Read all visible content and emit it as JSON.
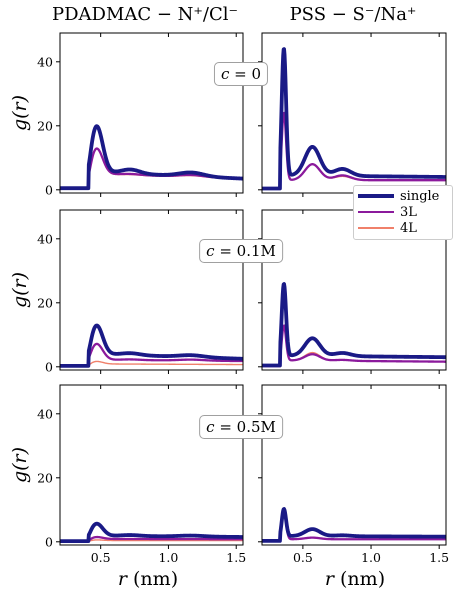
{
  "titles": [
    "PDADMAC − N⁺/Cl⁻",
    "PSS − S⁻/Na⁺"
  ],
  "ylabel": "g(r)",
  "xlabel_var": "r",
  "xlabel_unit": "(nm)",
  "row_labels": [
    {
      "var": "c",
      "value": "= 0"
    },
    {
      "var": "c",
      "value": "= 0.1M"
    },
    {
      "var": "c",
      "value": "= 0.5M"
    }
  ],
  "legend": [
    {
      "name": "single",
      "color": "#1a1a86"
    },
    {
      "name": "3L",
      "color": "#8b1a9c"
    },
    {
      "name": "4L",
      "color": "#f0806a"
    }
  ],
  "chart_data": {
    "type": "line",
    "xlim": [
      0.2,
      1.55
    ],
    "ylim": [
      -1,
      49
    ],
    "xticks": [
      0.5,
      1.0,
      1.5
    ],
    "yticks": [
      0,
      20,
      40
    ],
    "panels": [
      {
        "row": 0,
        "col": 0,
        "peaks": [
          [
            0.47,
            0.045
          ],
          [
            0.72,
            0.07
          ],
          [
            1.17,
            0.09
          ]
        ],
        "series": [
          {
            "name": "single",
            "onset": 0.41,
            "base": 0.5,
            "amps": [
              14.5,
              1.3,
              1.2
            ],
            "tail": 5.5,
            "tail_end": 3.5
          },
          {
            "name": "3L",
            "onset": 0.41,
            "base": 0.3,
            "amps": [
              8.0,
              0.3,
              0.6
            ],
            "tail": 5.0,
            "tail_end": 3.5
          },
          {
            "name": "4L",
            "onset": 0.41,
            "base": 0.3,
            "amps": [
              8.0,
              0.2,
              0.5
            ],
            "tail": 4.9,
            "tail_end": 3.4
          }
        ]
      },
      {
        "row": 0,
        "col": 1,
        "peaks": [
          [
            0.36,
            0.016
          ],
          [
            0.57,
            0.055
          ],
          [
            0.79,
            0.06
          ]
        ],
        "series": [
          {
            "name": "single",
            "onset": 0.335,
            "base": 0.4,
            "amps": [
              41.0,
              9.0,
              2.2
            ],
            "tail": 4.5,
            "tail_end": 4.0
          },
          {
            "name": "3L",
            "onset": 0.335,
            "base": 0.3,
            "amps": [
              22.0,
              5.0,
              1.5
            ],
            "tail": 3.0,
            "tail_end": 3.0
          },
          {
            "name": "4L",
            "onset": 0.335,
            "base": 0.3,
            "amps": [
              22.0,
              5.0,
              1.2
            ],
            "tail": 3.0,
            "tail_end": 3.0
          }
        ]
      },
      {
        "row": 1,
        "col": 0,
        "peaks": [
          [
            0.47,
            0.045
          ],
          [
            0.72,
            0.07
          ],
          [
            1.17,
            0.09
          ]
        ],
        "series": [
          {
            "name": "single",
            "onset": 0.41,
            "base": 0.3,
            "amps": [
              9.0,
              0.6,
              0.6
            ],
            "tail": 4.0,
            "tail_end": 2.5
          },
          {
            "name": "3L",
            "onset": 0.41,
            "base": 0.2,
            "amps": [
              5.0,
              0.2,
              0.3
            ],
            "tail": 2.2,
            "tail_end": 1.8
          },
          {
            "name": "4L",
            "onset": 0.41,
            "base": 0.1,
            "amps": [
              0.8,
              0.0,
              0.0
            ],
            "tail": 0.9,
            "tail_end": 0.7
          }
        ]
      },
      {
        "row": 1,
        "col": 1,
        "peaks": [
          [
            0.36,
            0.016
          ],
          [
            0.57,
            0.055
          ],
          [
            0.79,
            0.06
          ]
        ],
        "series": [
          {
            "name": "single",
            "onset": 0.335,
            "base": 0.4,
            "amps": [
              23.5,
              5.5,
              1.0
            ],
            "tail": 3.5,
            "tail_end": 3.0
          },
          {
            "name": "3L",
            "onset": 0.335,
            "base": 0.2,
            "amps": [
              11.5,
              2.0,
              0.3
            ],
            "tail": 2.0,
            "tail_end": 1.6
          },
          {
            "name": "4L",
            "onset": 0.335,
            "base": 0.2,
            "amps": [
              11.5,
              2.5,
              0.3
            ],
            "tail": 2.0,
            "tail_end": 1.6
          }
        ]
      },
      {
        "row": 2,
        "col": 0,
        "peaks": [
          [
            0.47,
            0.045
          ],
          [
            0.72,
            0.07
          ],
          [
            1.17,
            0.09
          ]
        ],
        "series": [
          {
            "name": "single",
            "onset": 0.41,
            "base": 0.2,
            "amps": [
              3.8,
              0.3,
              0.3
            ],
            "tail": 1.9,
            "tail_end": 1.5
          },
          {
            "name": "3L",
            "onset": 0.41,
            "base": 0.1,
            "amps": [
              0.6,
              0.0,
              0.0
            ],
            "tail": 0.9,
            "tail_end": 0.8
          },
          {
            "name": "4L",
            "onset": 0.41,
            "base": 0.1,
            "amps": [
              0.2,
              0.0,
              0.0
            ],
            "tail": 0.4,
            "tail_end": 0.4
          }
        ]
      },
      {
        "row": 2,
        "col": 1,
        "peaks": [
          [
            0.36,
            0.016
          ],
          [
            0.57,
            0.055
          ],
          [
            0.79,
            0.06
          ]
        ],
        "series": [
          {
            "name": "single",
            "onset": 0.335,
            "base": 0.3,
            "amps": [
              9.0,
              2.2,
              0.3
            ],
            "tail": 1.8,
            "tail_end": 1.6
          },
          {
            "name": "3L",
            "onset": 0.335,
            "base": 0.2,
            "amps": [
              9.0,
              0.5,
              0.0
            ],
            "tail": 0.8,
            "tail_end": 0.8
          },
          {
            "name": "4L",
            "onset": 0.335,
            "base": 0.2,
            "amps": [
              10.0,
              0.5,
              0.0
            ],
            "tail": 0.8,
            "tail_end": 0.8
          }
        ]
      }
    ]
  }
}
